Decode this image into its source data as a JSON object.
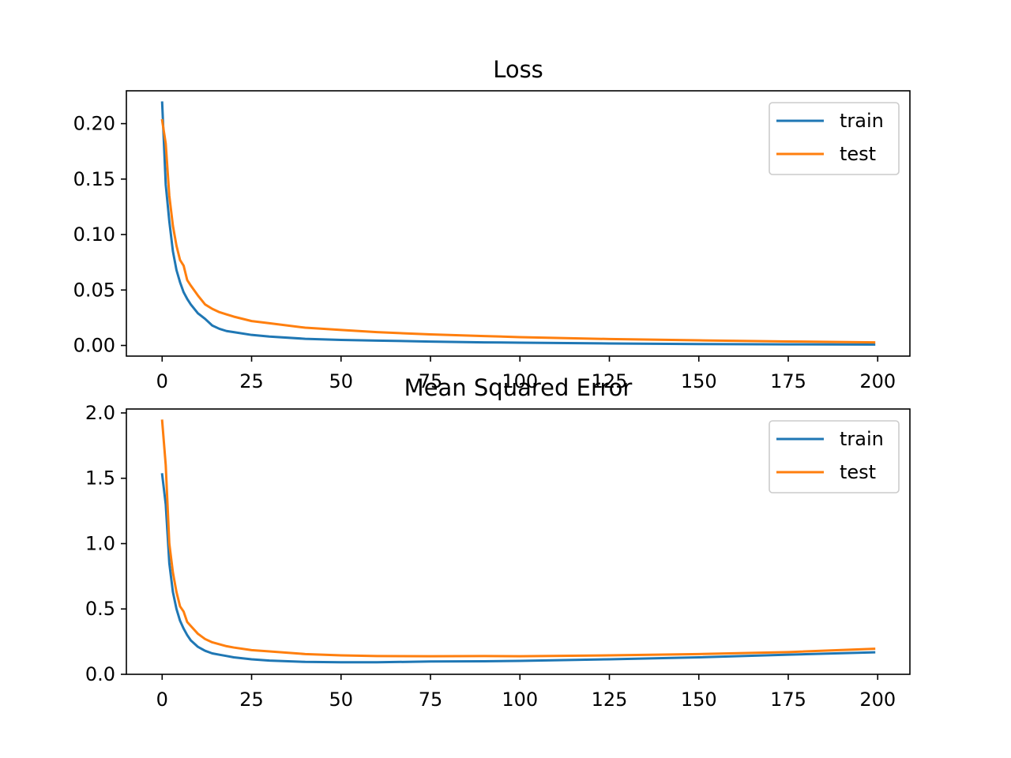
{
  "chart_data": [
    {
      "type": "line",
      "title": "Loss",
      "xlabel": "",
      "ylabel": "",
      "xlim": [
        -10,
        209
      ],
      "ylim": [
        -0.0096,
        0.2296
      ],
      "xticks": [
        0,
        25,
        50,
        75,
        100,
        125,
        150,
        175,
        200
      ],
      "yticks": [
        0.0,
        0.05,
        0.1,
        0.15,
        0.2
      ],
      "ytick_labels": [
        "0.00",
        "0.05",
        "0.10",
        "0.15",
        "0.20"
      ],
      "legend": "top-right",
      "series": [
        {
          "name": "train",
          "color": "#1f77b4",
          "x": [
            0,
            1,
            2,
            3,
            4,
            5,
            6,
            7,
            8,
            10,
            12,
            14,
            16,
            18,
            20,
            25,
            30,
            40,
            50,
            60,
            75,
            90,
            100,
            125,
            150,
            175,
            199
          ],
          "y": [
            0.219,
            0.145,
            0.112,
            0.085,
            0.068,
            0.057,
            0.048,
            0.042,
            0.037,
            0.029,
            0.024,
            0.018,
            0.015,
            0.013,
            0.012,
            0.0095,
            0.008,
            0.006,
            0.005,
            0.0044,
            0.0035,
            0.0028,
            0.0025,
            0.0018,
            0.0013,
            0.001,
            0.0008
          ]
        },
        {
          "name": "test",
          "color": "#ff7f0e",
          "x": [
            0,
            1,
            2,
            3,
            4,
            5,
            6,
            7,
            8,
            10,
            12,
            14,
            16,
            18,
            20,
            25,
            30,
            40,
            50,
            60,
            75,
            90,
            100,
            125,
            150,
            175,
            199
          ],
          "y": [
            0.203,
            0.182,
            0.135,
            0.108,
            0.09,
            0.077,
            0.072,
            0.059,
            0.054,
            0.045,
            0.037,
            0.033,
            0.03,
            0.028,
            0.026,
            0.022,
            0.02,
            0.016,
            0.014,
            0.012,
            0.01,
            0.0085,
            0.0075,
            0.0058,
            0.0046,
            0.0036,
            0.0028
          ]
        }
      ]
    },
    {
      "type": "line",
      "title": "Mean Squared Error",
      "xlabel": "",
      "ylabel": "",
      "xlim": [
        -10,
        209
      ],
      "ylim": [
        0.0,
        2.03
      ],
      "xticks": [
        0,
        25,
        50,
        75,
        100,
        125,
        150,
        175,
        200
      ],
      "yticks": [
        0.0,
        0.5,
        1.0,
        1.5,
        2.0
      ],
      "ytick_labels": [
        "0.0",
        "0.5",
        "1.0",
        "1.5",
        "2.0"
      ],
      "legend": "top-right",
      "series": [
        {
          "name": "train",
          "color": "#1f77b4",
          "x": [
            0,
            1,
            2,
            3,
            4,
            5,
            6,
            7,
            8,
            10,
            12,
            14,
            16,
            18,
            20,
            25,
            30,
            40,
            50,
            60,
            75,
            90,
            100,
            125,
            150,
            175,
            199
          ],
          "y": [
            1.53,
            1.3,
            0.85,
            0.63,
            0.5,
            0.41,
            0.35,
            0.3,
            0.26,
            0.21,
            0.18,
            0.16,
            0.15,
            0.14,
            0.13,
            0.115,
            0.105,
            0.095,
            0.092,
            0.092,
            0.098,
            0.1,
            0.103,
            0.115,
            0.13,
            0.15,
            0.168
          ]
        },
        {
          "name": "test",
          "color": "#ff7f0e",
          "x": [
            0,
            1,
            2,
            3,
            4,
            5,
            6,
            7,
            8,
            10,
            12,
            14,
            16,
            18,
            20,
            25,
            30,
            40,
            50,
            60,
            75,
            90,
            100,
            125,
            150,
            175,
            199
          ],
          "y": [
            1.94,
            1.6,
            1.0,
            0.78,
            0.63,
            0.52,
            0.48,
            0.4,
            0.37,
            0.31,
            0.27,
            0.245,
            0.23,
            0.215,
            0.205,
            0.185,
            0.175,
            0.155,
            0.145,
            0.14,
            0.138,
            0.14,
            0.138,
            0.145,
            0.155,
            0.17,
            0.195
          ]
        }
      ]
    }
  ]
}
